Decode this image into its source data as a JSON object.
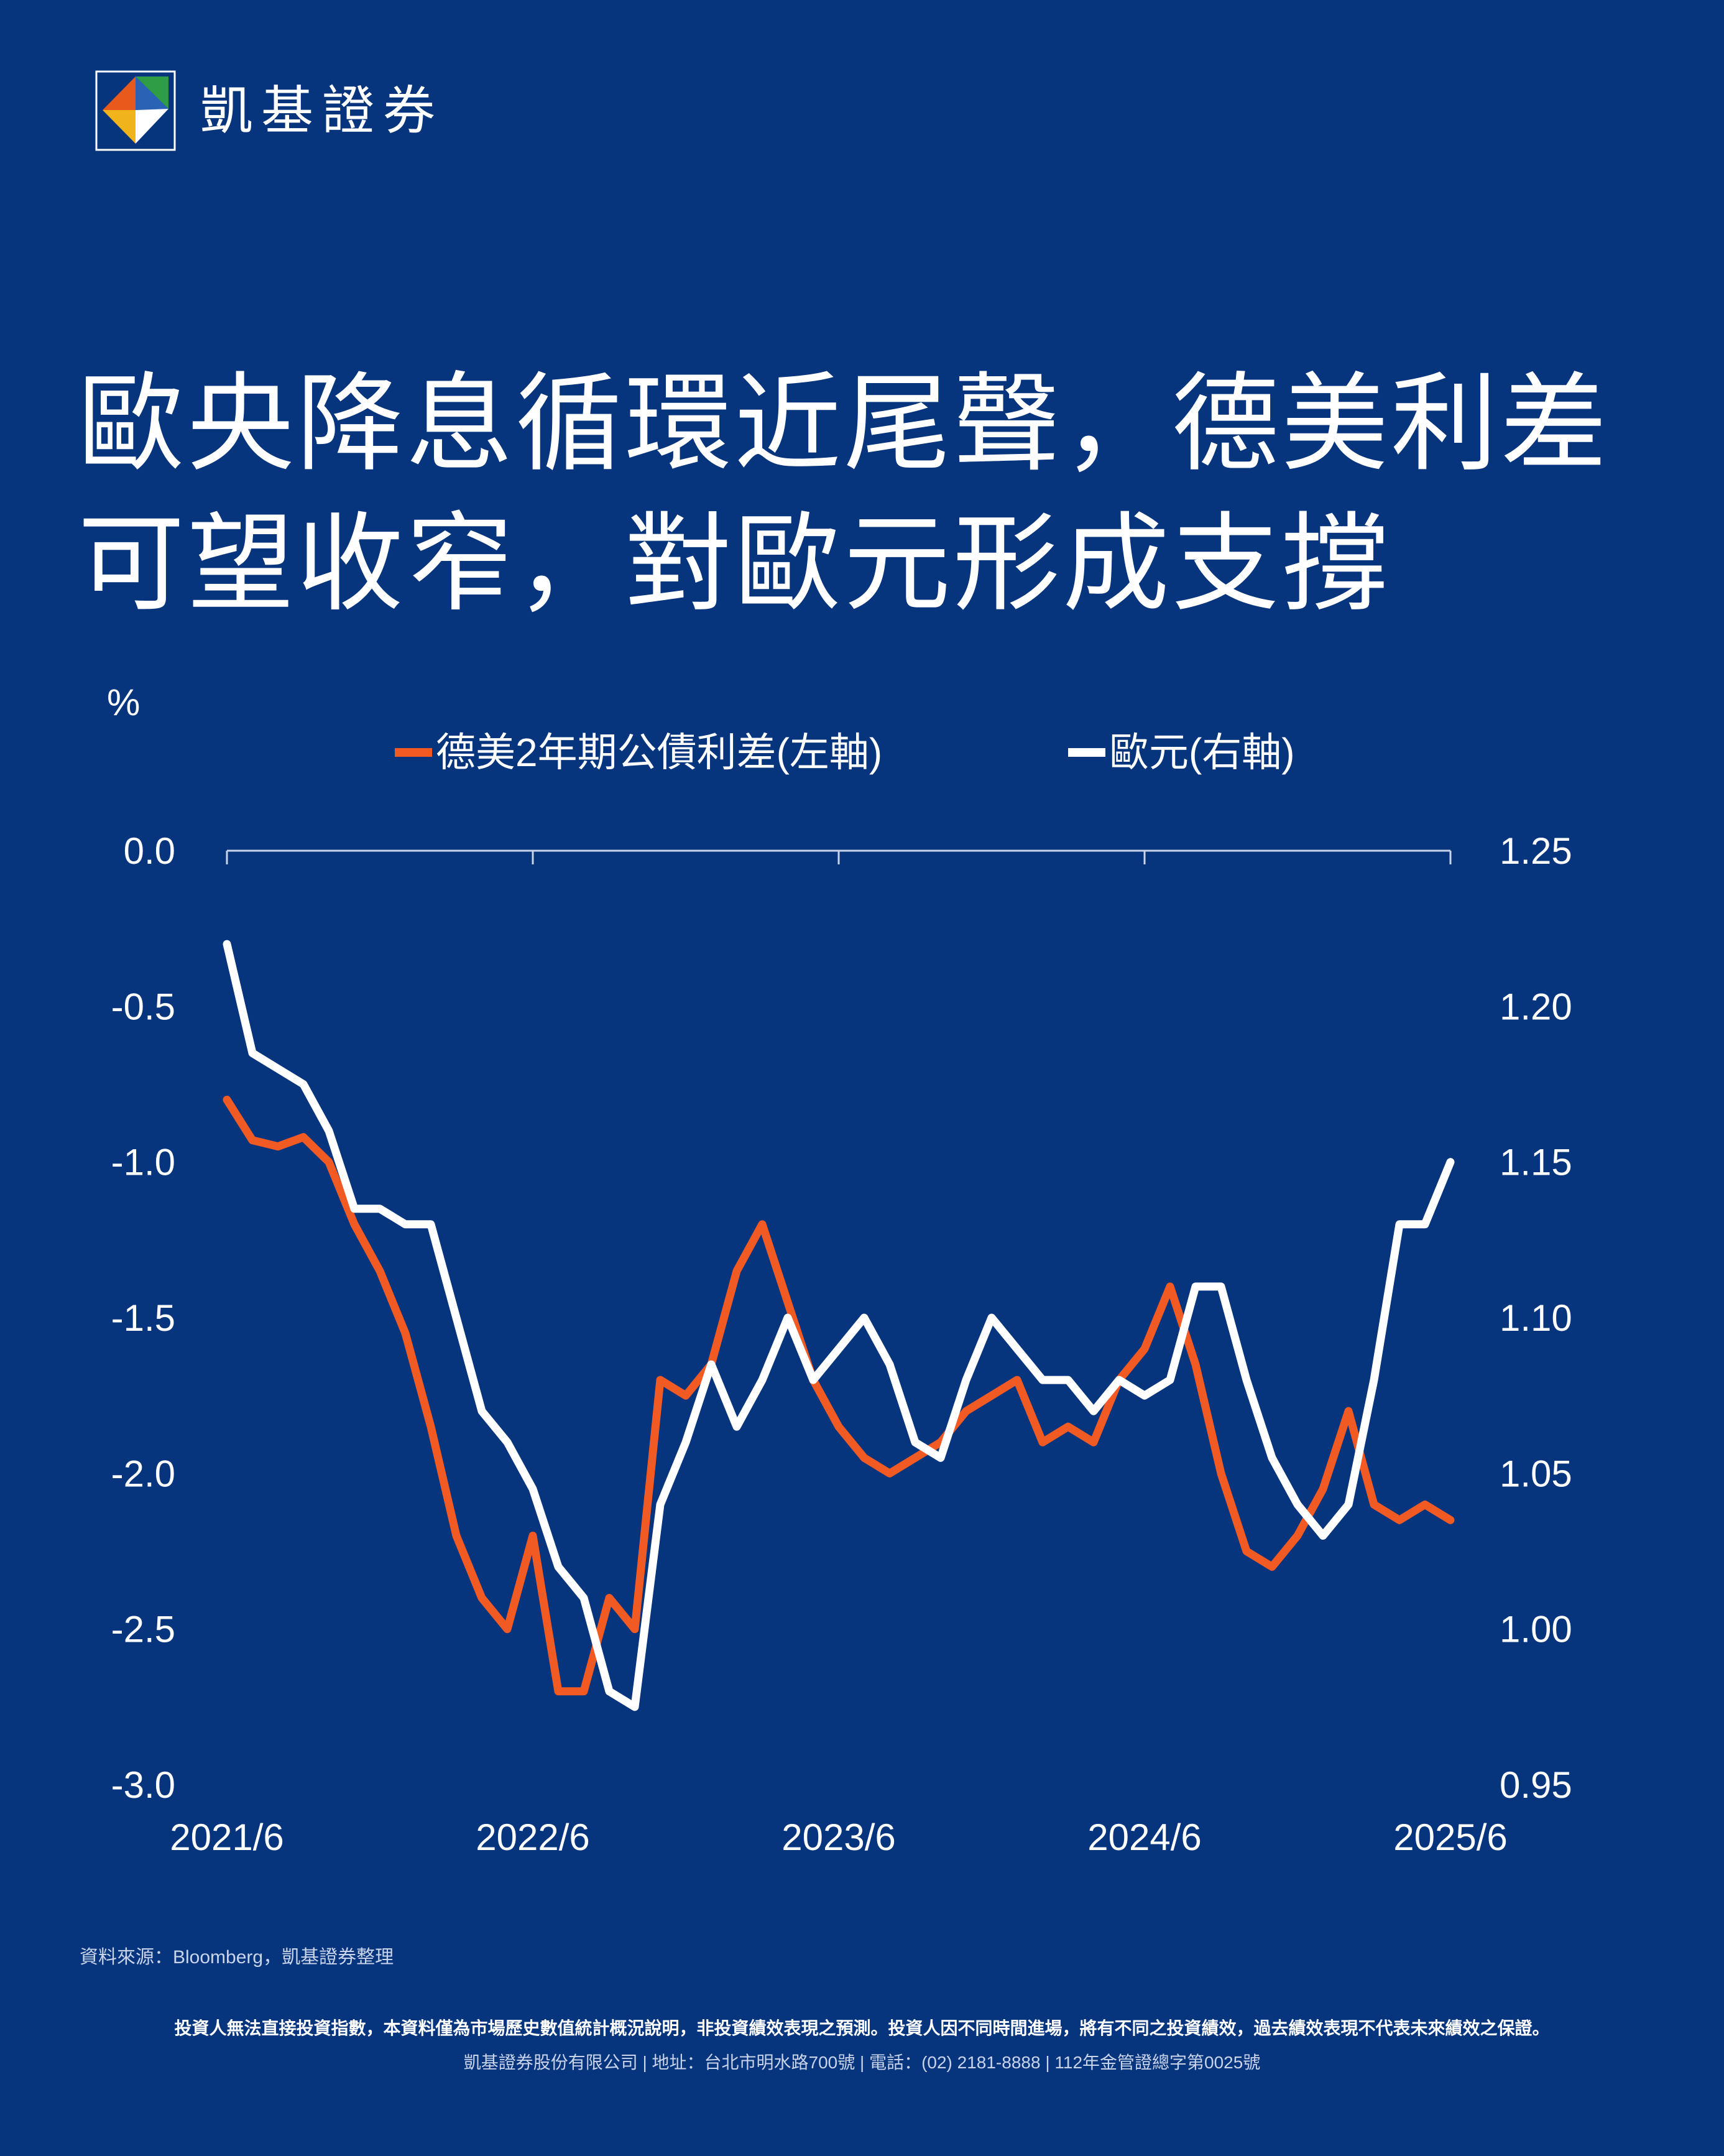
{
  "brand": {
    "name": "凱基證券",
    "logo_colors": [
      "#e85a1b",
      "#2a62b5",
      "#2f9d46",
      "#f1b31c",
      "#ffffff"
    ]
  },
  "title": {
    "line1": "歐央降息循環近尾聲，德美利差",
    "line2": "可望收窄，對歐元形成支撐"
  },
  "chart_data": {
    "type": "line",
    "unit_label": "%",
    "x_ticks": [
      "2021/6",
      "2022/6",
      "2023/6",
      "2024/6",
      "2025/6"
    ],
    "xlim": [
      "2021/6",
      "2025/6"
    ],
    "y_left": {
      "ylim": [
        -3.0,
        0.0
      ],
      "ticks": [
        "0.0",
        "-0.5",
        "-1.0",
        "-1.5",
        "-2.0",
        "-2.5",
        "-3.0"
      ]
    },
    "y_right": {
      "ylim": [
        0.95,
        1.25
      ],
      "ticks": [
        "1.25",
        "1.20",
        "1.15",
        "1.10",
        "1.05",
        "1.00",
        "0.95"
      ]
    },
    "colors": {
      "spread": "#f15a22",
      "eur": "#ffffff",
      "background": "#06347d"
    },
    "legend_placement": "top-center",
    "series": [
      {
        "name": "德美2年期公債利差(左軸)",
        "axis": "left",
        "x": [
          "2021/6",
          "2021/7",
          "2021/8",
          "2021/9",
          "2021/10",
          "2021/11",
          "2021/12",
          "2022/1",
          "2022/2",
          "2022/3",
          "2022/4",
          "2022/5",
          "2022/6",
          "2022/7",
          "2022/8",
          "2022/9",
          "2022/10",
          "2022/11",
          "2022/12",
          "2023/1",
          "2023/2",
          "2023/3",
          "2023/4",
          "2023/5",
          "2023/6",
          "2023/7",
          "2023/8",
          "2023/9",
          "2023/10",
          "2023/11",
          "2023/12",
          "2024/1",
          "2024/2",
          "2024/3",
          "2024/4",
          "2024/5",
          "2024/6",
          "2024/7",
          "2024/8",
          "2024/9",
          "2024/10",
          "2024/11",
          "2024/12",
          "2025/1",
          "2025/2",
          "2025/3",
          "2025/4",
          "2025/5",
          "2025/6"
        ],
        "values": [
          -0.8,
          -0.93,
          -0.95,
          -0.92,
          -1.0,
          -1.2,
          -1.35,
          -1.55,
          -1.85,
          -2.2,
          -2.4,
          -2.5,
          -2.2,
          -2.7,
          -2.7,
          -2.4,
          -2.5,
          -1.7,
          -1.75,
          -1.65,
          -1.35,
          -1.2,
          -1.45,
          -1.7,
          -1.85,
          -1.95,
          -2.0,
          -1.95,
          -1.9,
          -1.8,
          -1.75,
          -1.7,
          -1.9,
          -1.85,
          -1.9,
          -1.7,
          -1.6,
          -1.4,
          -1.65,
          -2.0,
          -2.25,
          -2.3,
          -2.2,
          -2.05,
          -1.8,
          -2.1,
          -2.15,
          -2.1,
          -2.15
        ]
      },
      {
        "name": "歐元(右軸)",
        "axis": "right",
        "x": [
          "2021/6",
          "2021/7",
          "2021/8",
          "2021/9",
          "2021/10",
          "2021/11",
          "2021/12",
          "2022/1",
          "2022/2",
          "2022/3",
          "2022/4",
          "2022/5",
          "2022/6",
          "2022/7",
          "2022/8",
          "2022/9",
          "2022/10",
          "2022/11",
          "2022/12",
          "2023/1",
          "2023/2",
          "2023/3",
          "2023/4",
          "2023/5",
          "2023/6",
          "2023/7",
          "2023/8",
          "2023/9",
          "2023/10",
          "2023/11",
          "2023/12",
          "2024/1",
          "2024/2",
          "2024/3",
          "2024/4",
          "2024/5",
          "2024/6",
          "2024/7",
          "2024/8",
          "2024/9",
          "2024/10",
          "2024/11",
          "2024/12",
          "2025/1",
          "2025/2",
          "2025/3",
          "2025/4",
          "2025/5",
          "2025/6"
        ],
        "values": [
          1.22,
          1.185,
          1.18,
          1.175,
          1.16,
          1.135,
          1.135,
          1.13,
          1.13,
          1.1,
          1.07,
          1.06,
          1.045,
          1.02,
          1.01,
          0.98,
          0.975,
          1.04,
          1.06,
          1.085,
          1.065,
          1.08,
          1.1,
          1.08,
          1.09,
          1.1,
          1.085,
          1.06,
          1.055,
          1.08,
          1.1,
          1.09,
          1.08,
          1.08,
          1.07,
          1.08,
          1.075,
          1.08,
          1.11,
          1.11,
          1.08,
          1.055,
          1.04,
          1.03,
          1.04,
          1.08,
          1.13,
          1.13,
          1.15
        ]
      }
    ]
  },
  "source": "資料來源：Bloomberg，凱基證券整理",
  "footer": {
    "disclaimer": "投資人無法直接投資指數，本資料僅為市場歷史數值統計概況說明，非投資績效表現之預測。投資人因不同時間進場，將有不同之投資績效，過去績效表現不代表未來績效之保證。",
    "company": "凱基證券股份有限公司 | 地址：台北市明水路700號 | 電話：(02) 2181-8888 | 112年金管證總字第0025號"
  }
}
